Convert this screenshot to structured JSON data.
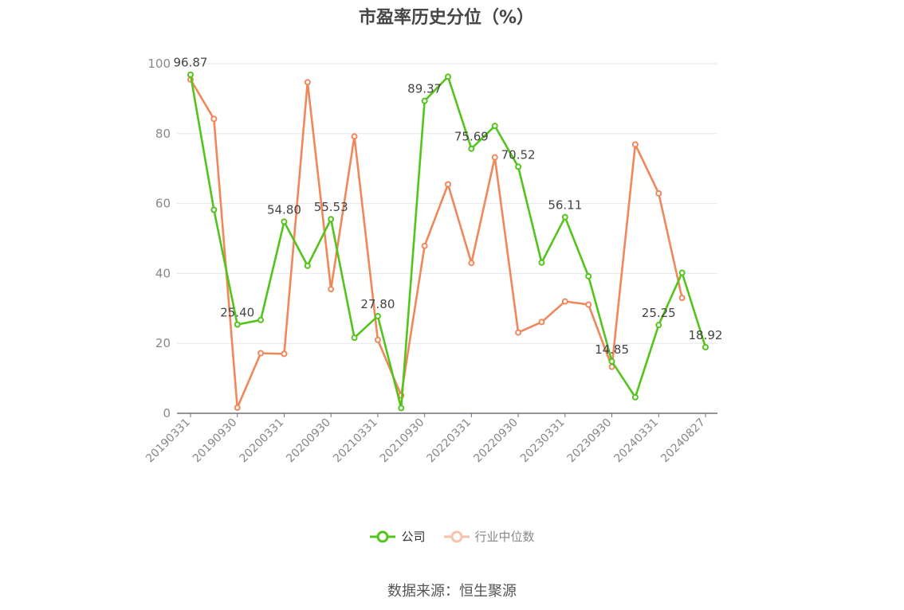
{
  "chart_data": {
    "type": "line",
    "title": "市盈率历史分位（%）",
    "source": "数据来源：恒生聚源",
    "ylim": [
      0,
      100
    ],
    "yticks": [
      "0",
      "20",
      "40",
      "60",
      "80",
      "100"
    ],
    "tick_labels": [
      "20190331",
      "20190930",
      "20200331",
      "20200930",
      "20210331",
      "20210930",
      "20220331",
      "20220930",
      "20230331",
      "20230930",
      "20240331",
      "20240827"
    ],
    "grid": true,
    "legend": "bottom-center",
    "series": [
      {
        "name": "公司",
        "color": "#52c41a",
        "values": [
          96.87,
          58.2,
          25.4,
          26.7,
          54.8,
          42.2,
          55.53,
          21.6,
          27.8,
          1.5,
          89.37,
          96.3,
          75.69,
          82.2,
          70.52,
          43.1,
          56.11,
          39.2,
          14.85,
          4.6,
          25.25,
          40.2,
          18.92
        ],
        "labels": [
          "96.87",
          "",
          "25.40",
          "",
          "54.80",
          "",
          "55.53",
          "",
          "27.80",
          "",
          "89.37",
          "",
          "75.69",
          "",
          "70.52",
          "",
          "56.11",
          "",
          "14.85",
          "",
          "25.25",
          "",
          "18.92"
        ]
      },
      {
        "name": "行业中位数",
        "color": "#f0875a",
        "values": [
          95.5,
          84.2,
          1.6,
          17.2,
          17.0,
          94.7,
          35.5,
          79.2,
          21.0,
          5.1,
          47.9,
          65.5,
          43.0,
          73.2,
          23.1,
          26.1,
          32.0,
          31.1,
          13.3,
          76.9,
          62.9,
          33.0
        ]
      }
    ]
  }
}
